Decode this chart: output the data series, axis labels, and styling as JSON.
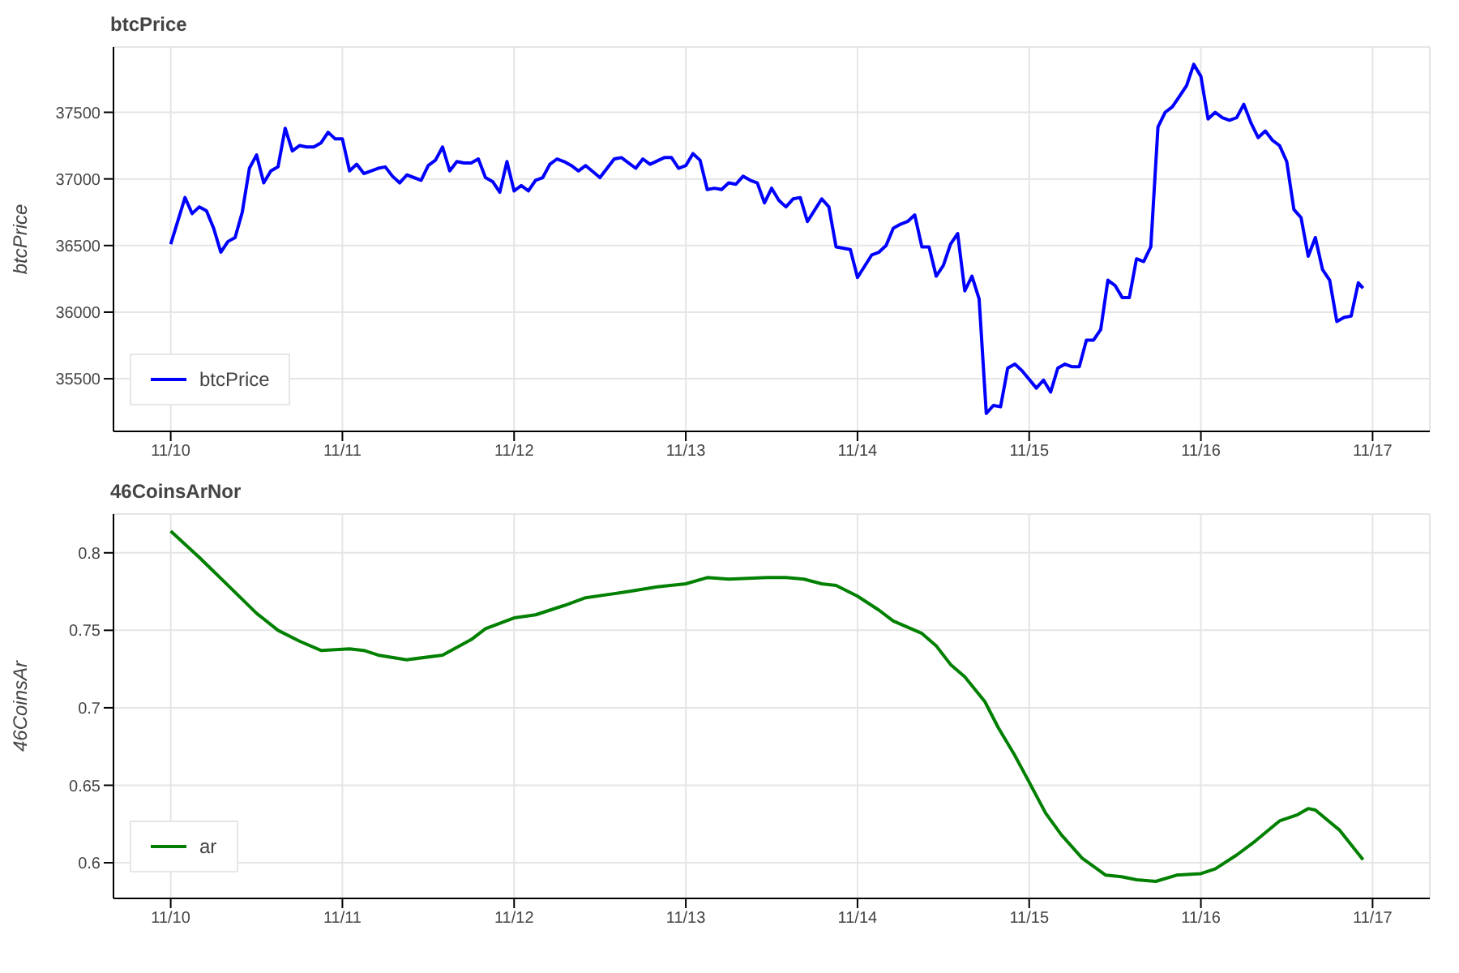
{
  "chart_data": [
    {
      "type": "line",
      "title": "btcPrice",
      "ylabel": "btcPrice",
      "x": [
        "--11-10T00:00",
        "--11-10T02:00",
        "--11-10T03:00",
        "--11-10T04:00",
        "--11-10T05:00",
        "--11-10T06:00",
        "--11-10T07:00",
        "--11-10T08:00",
        "--11-10T09:00",
        "--11-10T10:00",
        "--11-10T11:00",
        "--11-10T12:00",
        "--11-10T13:00",
        "--11-10T14:00",
        "--11-10T15:00",
        "--11-10T16:00",
        "--11-10T17:00",
        "--11-10T18:00",
        "--11-10T19:00",
        "--11-10T20:00",
        "--11-10T21:00",
        "--11-10T22:00",
        "--11-10T23:00",
        "--11-11T00:00",
        "--11-11T01:00",
        "--11-11T02:00",
        "--11-11T03:00",
        "--11-11T05:00",
        "--11-11T06:00",
        "--11-11T07:00",
        "--11-11T08:00",
        "--11-11T09:00",
        "--11-11T11:00",
        "--11-11T12:00",
        "--11-11T13:00",
        "--11-11T14:00",
        "--11-11T15:00",
        "--11-11T16:00",
        "--11-11T17:00",
        "--11-11T18:00",
        "--11-11T19:00",
        "--11-11T20:00",
        "--11-11T21:00",
        "--11-11T22:00",
        "--11-11T23:00",
        "--11-12T00:00",
        "--11-12T01:00",
        "--11-12T02:00",
        "--11-12T03:00",
        "--11-12T04:00",
        "--11-12T05:00",
        "--11-12T06:00",
        "--11-12T07:00",
        "--11-12T08:00",
        "--11-12T09:00",
        "--11-12T10:00",
        "--11-12T12:00",
        "--11-12T14:00",
        "--11-12T15:00",
        "--11-12T17:00",
        "--11-12T18:00",
        "--11-12T19:00",
        "--11-12T21:00",
        "--11-12T22:00",
        "--11-12T23:00",
        "--11-13T00:00",
        "--11-13T01:00",
        "--11-13T02:00",
        "--11-13T03:00",
        "--11-13T04:00",
        "--11-13T05:00",
        "--11-13T06:00",
        "--11-13T07:00",
        "--11-13T08:00",
        "--11-13T09:00",
        "--11-13T10:00",
        "--11-13T11:00",
        "--11-13T12:00",
        "--11-13T13:00",
        "--11-13T14:00",
        "--11-13T15:00",
        "--11-13T16:00",
        "--11-13T17:00",
        "--11-13T19:00",
        "--11-13T20:00",
        "--11-13T21:00",
        "--11-13T23:00",
        "--11-14T00:00",
        "--11-14T02:00",
        "--11-14T03:00",
        "--11-14T04:00",
        "--11-14T05:00",
        "--11-14T06:00",
        "--11-14T07:00",
        "--11-14T08:00",
        "--11-14T09:00",
        "--11-14T10:00",
        "--11-14T11:00",
        "--11-14T12:00",
        "--11-14T13:00",
        "--11-14T14:00",
        "--11-14T15:00",
        "--11-14T16:00",
        "--11-14T17:00",
        "--11-14T18:00",
        "--11-14T19:00",
        "--11-14T20:00",
        "--11-14T21:00",
        "--11-14T22:00",
        "--11-14T23:00",
        "--11-15T01:00",
        "--11-15T02:00",
        "--11-15T03:00",
        "--11-15T04:00",
        "--11-15T05:00",
        "--11-15T06:00",
        "--11-15T07:00",
        "--11-15T08:00",
        "--11-15T09:00",
        "--11-15T10:00",
        "--11-15T11:00",
        "--11-15T12:00",
        "--11-15T13:00",
        "--11-15T14:00",
        "--11-15T15:00",
        "--11-15T16:00",
        "--11-15T17:00",
        "--11-15T18:00",
        "--11-15T19:00",
        "--11-15T20:00",
        "--11-15T21:00",
        "--11-15T22:00",
        "--11-15T23:00",
        "--11-16T00:00",
        "--11-16T01:00",
        "--11-16T02:00",
        "--11-16T03:00",
        "--11-16T04:00",
        "--11-16T05:00",
        "--11-16T06:00",
        "--11-16T07:00",
        "--11-16T08:00",
        "--11-16T09:00",
        "--11-16T10:00",
        "--11-16T11:00",
        "--11-16T12:00",
        "--11-16T13:00",
        "--11-16T14:00",
        "--11-16T15:00",
        "--11-16T16:00",
        "--11-16T17:00",
        "--11-16T18:00",
        "--11-16T19:00",
        "--11-16T20:00",
        "--11-16T21:00",
        "--11-16T22:00",
        "--11-16T22:40"
      ],
      "series": [
        {
          "name": "btcPrice",
          "color": "#0000ff",
          "values": [
            36510,
            36860,
            36740,
            36790,
            36760,
            36630,
            36450,
            36530,
            36560,
            36750,
            37080,
            37180,
            36970,
            37060,
            37090,
            37380,
            37210,
            37250,
            37240,
            37240,
            37270,
            37350,
            37300,
            37300,
            37060,
            37110,
            37040,
            37080,
            37090,
            37020,
            36970,
            37030,
            36990,
            37100,
            37140,
            37240,
            37060,
            37130,
            37120,
            37120,
            37150,
            37010,
            36980,
            36900,
            37130,
            36910,
            36950,
            36910,
            36990,
            37010,
            37110,
            37150,
            37130,
            37100,
            37060,
            37100,
            37010,
            37150,
            37160,
            37080,
            37150,
            37110,
            37160,
            37160,
            37080,
            37100,
            37190,
            37140,
            36920,
            36930,
            36920,
            36970,
            36960,
            37020,
            36990,
            36970,
            36820,
            36930,
            36840,
            36790,
            36850,
            36860,
            36680,
            36850,
            36790,
            36490,
            36470,
            36260,
            36430,
            36450,
            36500,
            36630,
            36660,
            36680,
            36730,
            36490,
            36490,
            36270,
            36350,
            36510,
            36590,
            36160,
            36270,
            36100,
            35240,
            35300,
            35290,
            35580,
            35610,
            35560,
            35430,
            35490,
            35400,
            35580,
            35610,
            35590,
            35590,
            35790,
            35790,
            35870,
            36240,
            36200,
            36110,
            36110,
            36400,
            36380,
            36490,
            37390,
            37500,
            37540,
            37620,
            37700,
            37860,
            37770,
            37450,
            37500,
            37460,
            37440,
            37460,
            37560,
            37420,
            37310,
            37360,
            37290,
            37250,
            37130,
            36770,
            36710,
            36420,
            36560,
            36320,
            36240,
            35930,
            35960,
            35970,
            36220,
            36180
          ]
        }
      ],
      "xlim": [
        "--11-09T16:00",
        "--11-17T08:00"
      ],
      "ylim": [
        35105,
        37990
      ],
      "xticks": [
        {
          "value": "--11-10",
          "label": "11/10"
        },
        {
          "value": "--11-11",
          "label": "11/11"
        },
        {
          "value": "--11-12",
          "label": "11/12"
        },
        {
          "value": "--11-13",
          "label": "11/13"
        },
        {
          "value": "--11-14",
          "label": "11/14"
        },
        {
          "value": "--11-15",
          "label": "11/15"
        },
        {
          "value": "--11-16",
          "label": "11/16"
        },
        {
          "value": "--11-17",
          "label": "11/17"
        }
      ],
      "yticks": [
        35500,
        36000,
        36500,
        37000,
        37500
      ],
      "grid": true,
      "legend": "bottom left"
    },
    {
      "type": "line",
      "title": "46CoinsArNor",
      "ylabel": "46CoinsAr",
      "x": [
        "--11-10T00:00",
        "--11-10T04:00",
        "--11-10T08:00",
        "--11-10T12:00",
        "--11-10T15:00",
        "--11-10T18:00",
        "--11-10T21:00",
        "--11-11T01:00",
        "--11-11T03:00",
        "--11-11T05:00",
        "--11-11T09:00",
        "--11-11T14:00",
        "--11-11T18:00",
        "--11-11T20:00",
        "--11-12T00:00",
        "--11-12T03:00",
        "--11-12T07:00",
        "--11-12T10:00",
        "--11-12T13:00",
        "--11-12T16:00",
        "--11-12T20:00",
        "--11-13T00:00",
        "--11-13T03:00",
        "--11-13T06:00",
        "--11-13T11:24",
        "--11-13T14:00",
        "--11-13T16:30",
        "--11-13T19:00",
        "--11-13T21:00",
        "--11-14T00:00",
        "--11-14T03:00",
        "--11-14T05:00",
        "--11-14T09:00",
        "--11-14T11:00",
        "--11-14T13:00",
        "--11-14T15:00",
        "--11-14T17:48",
        "--11-14T19:42",
        "--11-14T21:54",
        "--11-15T00:00",
        "--11-15T02:18",
        "--11-15T04:30",
        "--11-15T07:24",
        "--11-15T10:42",
        "--11-15T12:54",
        "--11-15T15:00",
        "--11-15T17:42",
        "--11-15T20:36",
        "--11-16T00:00",
        "--11-16T02:00",
        "--11-16T05:00",
        "--11-16T07:36",
        "--11-16T11:00",
        "--11-16T13:30",
        "--11-16T15:00",
        "--11-16T16:00",
        "--11-16T19:24",
        "--11-16T22:40"
      ],
      "series": [
        {
          "name": "ar",
          "color": "#008000",
          "values": [
            0.814,
            0.797,
            0.779,
            0.761,
            0.75,
            0.743,
            0.737,
            0.738,
            0.737,
            0.734,
            0.731,
            0.734,
            0.744,
            0.751,
            0.758,
            0.76,
            0.766,
            0.771,
            0.773,
            0.775,
            0.778,
            0.78,
            0.784,
            0.783,
            0.784,
            0.784,
            0.783,
            0.78,
            0.779,
            0.772,
            0.763,
            0.756,
            0.748,
            0.74,
            0.728,
            0.72,
            0.704,
            0.687,
            0.67,
            0.652,
            0.632,
            0.618,
            0.603,
            0.592,
            0.591,
            0.589,
            0.588,
            0.592,
            0.593,
            0.596,
            0.605,
            0.614,
            0.627,
            0.631,
            0.635,
            0.634,
            0.621,
            0.602
          ]
        }
      ],
      "xlim": [
        "--11-09T16:00",
        "--11-17T08:00"
      ],
      "ylim": [
        0.577,
        0.825
      ],
      "xticks": [
        {
          "value": "--11-10",
          "label": "11/10"
        },
        {
          "value": "--11-11",
          "label": "11/11"
        },
        {
          "value": "--11-12",
          "label": "11/12"
        },
        {
          "value": "--11-13",
          "label": "11/13"
        },
        {
          "value": "--11-14",
          "label": "11/14"
        },
        {
          "value": "--11-15",
          "label": "11/15"
        },
        {
          "value": "--11-16",
          "label": "11/16"
        },
        {
          "value": "--11-17",
          "label": "11/17"
        }
      ],
      "yticks": [
        0.6,
        0.65,
        0.7,
        0.75,
        0.8
      ],
      "grid": true,
      "legend": "bottom left"
    }
  ]
}
